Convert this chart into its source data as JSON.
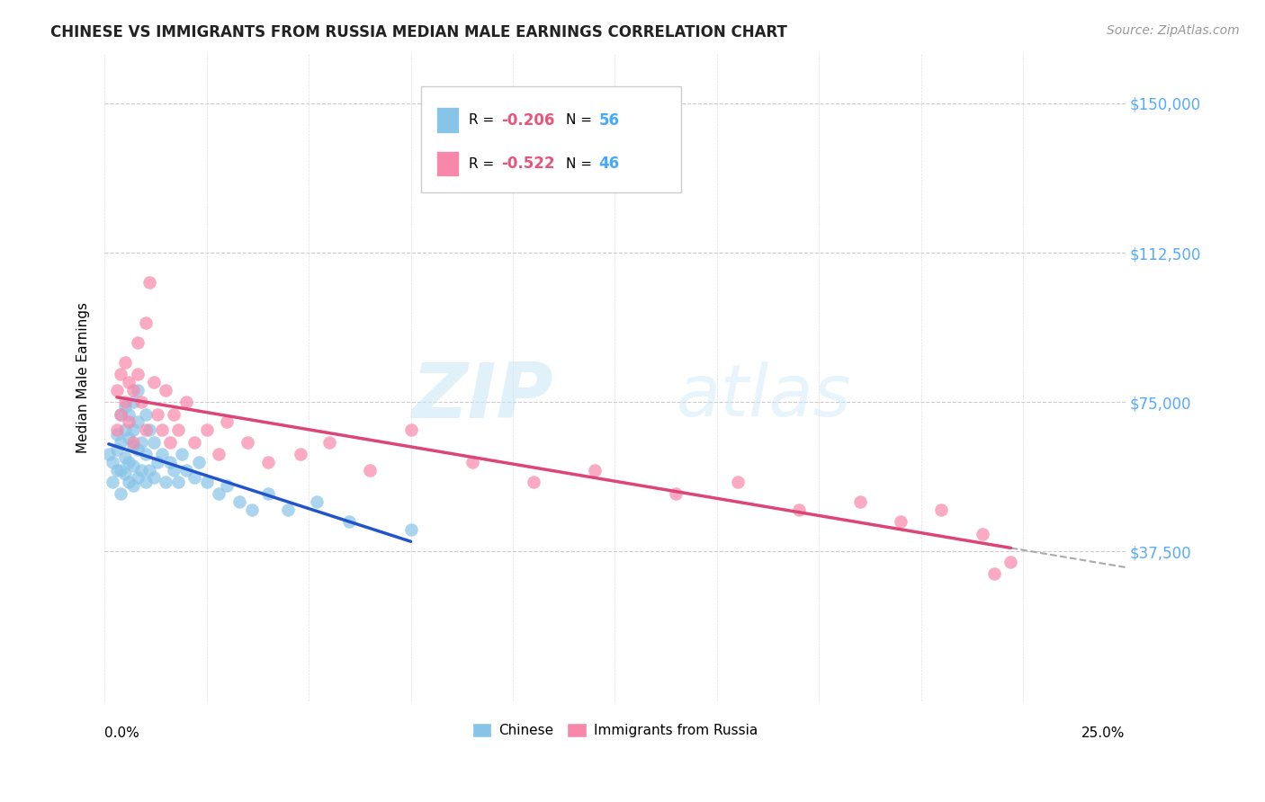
{
  "title": "CHINESE VS IMMIGRANTS FROM RUSSIA MEDIAN MALE EARNINGS CORRELATION CHART",
  "source": "Source: ZipAtlas.com",
  "ylabel": "Median Male Earnings",
  "xlim": [
    0.0,
    0.25
  ],
  "ylim": [
    0,
    162500
  ],
  "yticks": [
    0,
    37500,
    75000,
    112500,
    150000
  ],
  "xtick_labels": [
    "0.0%",
    "25.0%"
  ],
  "watermark_zip": "ZIP",
  "watermark_atlas": "atlas",
  "legend_r_chinese": "-0.206",
  "legend_n_chinese": "56",
  "legend_r_russia": "-0.522",
  "legend_n_russia": "46",
  "chinese_color": "#88c4e8",
  "russia_color": "#f888aa",
  "trend_chinese_color": "#2255cc",
  "trend_russia_color": "#dd4477",
  "trend_dashed_color": "#aaaaaa",
  "background_color": "#ffffff",
  "grid_color": "#cccccc",
  "title_color": "#222222",
  "source_color": "#999999",
  "right_tick_color": "#55aaff",
  "chinese_x": [
    0.001,
    0.002,
    0.002,
    0.003,
    0.003,
    0.003,
    0.004,
    0.004,
    0.004,
    0.004,
    0.005,
    0.005,
    0.005,
    0.005,
    0.006,
    0.006,
    0.006,
    0.006,
    0.007,
    0.007,
    0.007,
    0.007,
    0.007,
    0.008,
    0.008,
    0.008,
    0.008,
    0.009,
    0.009,
    0.01,
    0.01,
    0.01,
    0.011,
    0.011,
    0.012,
    0.012,
    0.013,
    0.014,
    0.015,
    0.016,
    0.017,
    0.018,
    0.019,
    0.02,
    0.022,
    0.023,
    0.025,
    0.028,
    0.03,
    0.033,
    0.036,
    0.04,
    0.045,
    0.052,
    0.06,
    0.075
  ],
  "chinese_y": [
    62000,
    55000,
    60000,
    58000,
    63000,
    67000,
    52000,
    58000,
    65000,
    72000,
    57000,
    61000,
    68000,
    74000,
    55000,
    60000,
    66000,
    72000,
    54000,
    59000,
    64000,
    68000,
    75000,
    56000,
    63000,
    70000,
    78000,
    58000,
    65000,
    55000,
    62000,
    72000,
    58000,
    68000,
    56000,
    65000,
    60000,
    62000,
    55000,
    60000,
    58000,
    55000,
    62000,
    58000,
    56000,
    60000,
    55000,
    52000,
    54000,
    50000,
    48000,
    52000,
    48000,
    50000,
    45000,
    43000
  ],
  "russia_x": [
    0.003,
    0.003,
    0.004,
    0.004,
    0.005,
    0.005,
    0.006,
    0.006,
    0.007,
    0.007,
    0.008,
    0.008,
    0.009,
    0.01,
    0.01,
    0.011,
    0.012,
    0.013,
    0.014,
    0.015,
    0.016,
    0.017,
    0.018,
    0.02,
    0.022,
    0.025,
    0.028,
    0.03,
    0.035,
    0.04,
    0.048,
    0.055,
    0.065,
    0.075,
    0.09,
    0.105,
    0.12,
    0.14,
    0.155,
    0.17,
    0.185,
    0.195,
    0.205,
    0.215,
    0.218,
    0.222
  ],
  "russia_y": [
    78000,
    68000,
    82000,
    72000,
    75000,
    85000,
    80000,
    70000,
    78000,
    65000,
    82000,
    90000,
    75000,
    68000,
    95000,
    105000,
    80000,
    72000,
    68000,
    78000,
    65000,
    72000,
    68000,
    75000,
    65000,
    68000,
    62000,
    70000,
    65000,
    60000,
    62000,
    65000,
    58000,
    68000,
    60000,
    55000,
    58000,
    52000,
    55000,
    48000,
    50000,
    45000,
    48000,
    42000,
    32000,
    35000
  ]
}
